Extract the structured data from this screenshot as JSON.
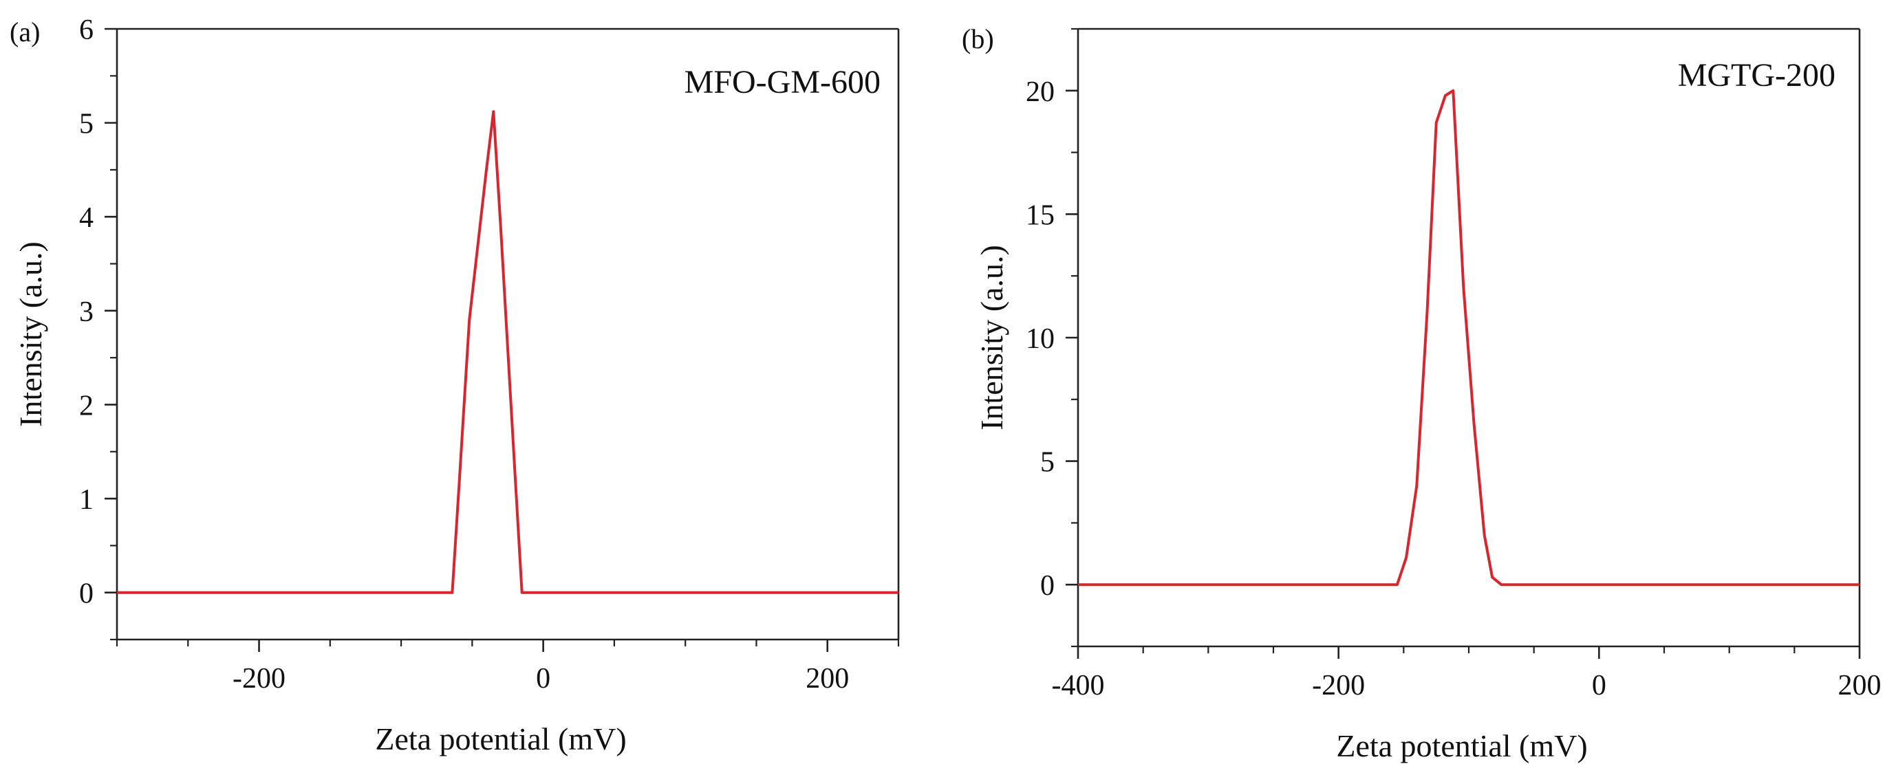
{
  "chart_data": [
    {
      "type": "line",
      "panel_label": "(a)",
      "annotation": "MFO-GM-600",
      "xlabel": "Zeta potential (mV)",
      "ylabel": "Intensity (a.u.)",
      "xlim": [
        -300,
        250
      ],
      "ylim": [
        -0.5,
        6
      ],
      "xticks": [
        -200,
        0,
        200
      ],
      "xminor_step": 50,
      "yticks": [
        0,
        1,
        2,
        3,
        4,
        5,
        6
      ],
      "yminor_step": 0.5,
      "grid": false,
      "color": "#d7262e",
      "series": [
        {
          "x": [
            -300,
            -64,
            -59,
            -52,
            -40,
            -35,
            -30,
            -20,
            -15,
            250
          ],
          "y": [
            0,
            0,
            1.2,
            2.9,
            4.5,
            5.12,
            3.9,
            1.3,
            0,
            0
          ]
        }
      ]
    },
    {
      "type": "line",
      "panel_label": "(b)",
      "annotation": "MGTG-200",
      "xlabel": "Zeta potential (mV)",
      "ylabel": "Intensity (a.u.)",
      "xlim": [
        -400,
        200
      ],
      "ylim": [
        -2.5,
        22.5
      ],
      "xticks": [
        -400,
        -200,
        0,
        200
      ],
      "xminor_step": 50,
      "yticks": [
        0,
        5,
        10,
        15,
        20
      ],
      "yminor_step": 2.5,
      "grid": false,
      "color": "#d7262e",
      "series": [
        {
          "x": [
            -400,
            -155,
            -148,
            -140,
            -132,
            -125,
            -118,
            -112,
            -104,
            -96,
            -88,
            -82,
            -75,
            200
          ],
          "y": [
            0,
            0,
            1.1,
            4,
            11,
            18.7,
            19.8,
            20,
            12,
            6.5,
            2,
            0.3,
            0,
            0
          ]
        }
      ]
    }
  ]
}
